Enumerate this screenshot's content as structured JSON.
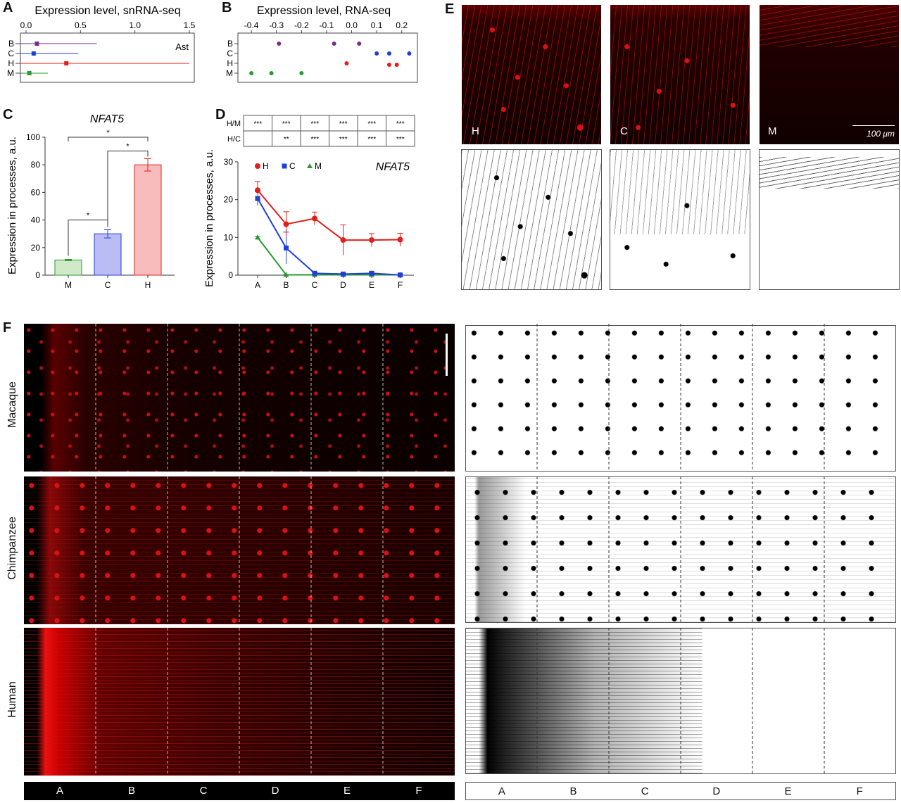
{
  "panels": {
    "A": "A",
    "B": "B",
    "C": "C",
    "D": "D",
    "E": "E",
    "F": "F"
  },
  "panelA": {
    "title": "Expression level, snRNA-seq",
    "ticks": [
      "0.0",
      "0.5",
      "1.0",
      "1.5"
    ],
    "tick_values": [
      0,
      0.5,
      1.0,
      1.5
    ],
    "tag": "Ast",
    "rows": [
      "B",
      "C",
      "H",
      "M"
    ],
    "colors": [
      "#7b2a8c",
      "#1f3fd6",
      "#e0201c",
      "#2a9a32"
    ]
  },
  "panelB": {
    "title": "Expression level, RNA-seq",
    "ticks": [
      "-0.4",
      "-0.3",
      "-0.2",
      "-0.1",
      "0.0",
      "0.1",
      "0.2"
    ],
    "tick_values": [
      -0.4,
      -0.3,
      -0.2,
      -0.1,
      0.0,
      0.1,
      0.2
    ],
    "rows": [
      "B",
      "C",
      "H",
      "M"
    ]
  },
  "panelC": {
    "title": "NFAT5",
    "ylabel": "Expression in processes, a.u.",
    "yticks": [
      "0",
      "20",
      "40",
      "60",
      "80",
      "100"
    ],
    "categories": [
      "M",
      "C",
      "H"
    ],
    "sig": [
      "*",
      "*",
      "*"
    ]
  },
  "panelD": {
    "title": "NFAT5",
    "ylabel": "Expression in processes, a.u.",
    "yticks": [
      "0",
      "10",
      "20",
      "30"
    ],
    "categories": [
      "A",
      "B",
      "C",
      "D",
      "E",
      "F"
    ],
    "legend": [
      "H",
      "C",
      "M"
    ],
    "table": {
      "rows": [
        "H/M",
        "H/C"
      ],
      "cells": [
        [
          "***",
          "***",
          "***",
          "***",
          "***",
          "***"
        ],
        [
          "",
          "**",
          "***",
          "***",
          "***",
          "***"
        ]
      ]
    }
  },
  "panelE": {
    "labels": [
      "H",
      "C",
      "M"
    ],
    "scalebar": "100 μm"
  },
  "panelF": {
    "rows": [
      "Macaque",
      "Chimpanzee",
      "Human"
    ],
    "layers": [
      "A",
      "B",
      "C",
      "D",
      "E",
      "F"
    ]
  },
  "chart_data": [
    {
      "type": "scatter",
      "panel": "A",
      "title": "Expression level, snRNA-seq",
      "xlim": [
        0,
        1.5
      ],
      "annotation": "Ast",
      "series": [
        {
          "name": "B",
          "x": [
            0.1
          ],
          "range": [
            0,
            0.65
          ]
        },
        {
          "name": "C",
          "x": [
            0.07
          ],
          "range": [
            0,
            0.48
          ]
        },
        {
          "name": "H",
          "x": [
            0.37
          ],
          "range": [
            0,
            1.5
          ]
        },
        {
          "name": "M",
          "x": [
            0.03
          ],
          "range": [
            0,
            0.2
          ]
        }
      ]
    },
    {
      "type": "scatter",
      "panel": "B",
      "title": "Expression level, RNA-seq",
      "xlim": [
        -0.42,
        0.24
      ],
      "series": [
        {
          "name": "B",
          "x": [
            -0.29,
            -0.07,
            0.03
          ]
        },
        {
          "name": "C",
          "x": [
            0.1,
            0.15,
            0.23
          ]
        },
        {
          "name": "H",
          "x": [
            -0.02,
            0.15,
            0.18
          ]
        },
        {
          "name": "M",
          "x": [
            -0.4,
            -0.32,
            -0.2
          ]
        }
      ]
    },
    {
      "type": "bar",
      "panel": "C",
      "title": "NFAT5",
      "ylabel": "Expression in processes, a.u.",
      "categories": [
        "M",
        "C",
        "H"
      ],
      "values": [
        11,
        30,
        80
      ],
      "errors": [
        0.5,
        3,
        4.5
      ],
      "ylim": [
        0,
        100
      ]
    },
    {
      "type": "line",
      "panel": "D",
      "title": "NFAT5",
      "ylabel": "Expression in processes, a.u.",
      "categories": [
        "A",
        "B",
        "C",
        "D",
        "E",
        "F"
      ],
      "ylim": [
        0,
        30
      ],
      "series": [
        {
          "name": "H",
          "values": [
            22.5,
            13.5,
            15,
            9.3,
            9.3,
            9.4
          ],
          "errors": [
            2.3,
            3.3,
            1.7,
            4,
            1.7,
            1.7
          ]
        },
        {
          "name": "C",
          "values": [
            20.3,
            7.2,
            0.5,
            0.3,
            0.5,
            0.05
          ],
          "errors": [
            1.8,
            4.2,
            0.3,
            0.2,
            0.3,
            0.1
          ]
        },
        {
          "name": "M",
          "values": [
            10,
            0.1,
            0.1,
            0.1,
            0.1,
            0.1
          ],
          "errors": [
            0.3,
            0.1,
            0.1,
            0.1,
            0.1,
            0.1
          ]
        }
      ]
    }
  ]
}
